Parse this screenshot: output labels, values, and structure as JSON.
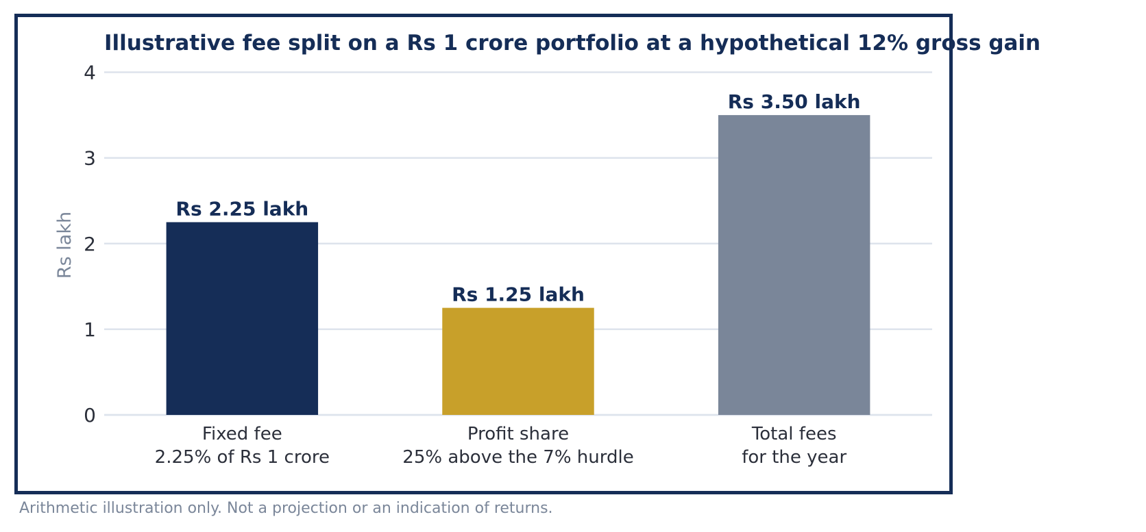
{
  "chart_data": {
    "type": "bar",
    "title": "Illustrative fee split on a Rs 1 crore portfolio at a hypothetical 12% gross gain",
    "xlabel": "",
    "ylabel": "Rs lakh",
    "ylim": [
      0,
      4.3
    ],
    "yticks": [
      0,
      1,
      2,
      3,
      4
    ],
    "grid": true,
    "legend": "none",
    "categories": [
      [
        "Fixed fee",
        "2.25% of Rs 1 crore"
      ],
      [
        "Profit share",
        "25% above the 7% hurdle"
      ],
      [
        "Total fees",
        "for the year"
      ]
    ],
    "values": [
      2.25,
      1.25,
      3.5
    ],
    "data_labels": [
      "Rs 2.25 lakh",
      "Rs 1.25 lakh",
      "Rs 3.50 lakh"
    ],
    "bar_colors": [
      "#152d57",
      "#c8a02a",
      "#7a8699"
    ]
  },
  "footnote": "Arithmetic illustration only. Not a projection or an indication of returns.",
  "colors": {
    "frame": "#152d57",
    "title": "#152d57",
    "grid": "#dde3ec",
    "axis_label": "#7a8699",
    "data_label": "#152d57",
    "footnote": "#7a8699"
  }
}
